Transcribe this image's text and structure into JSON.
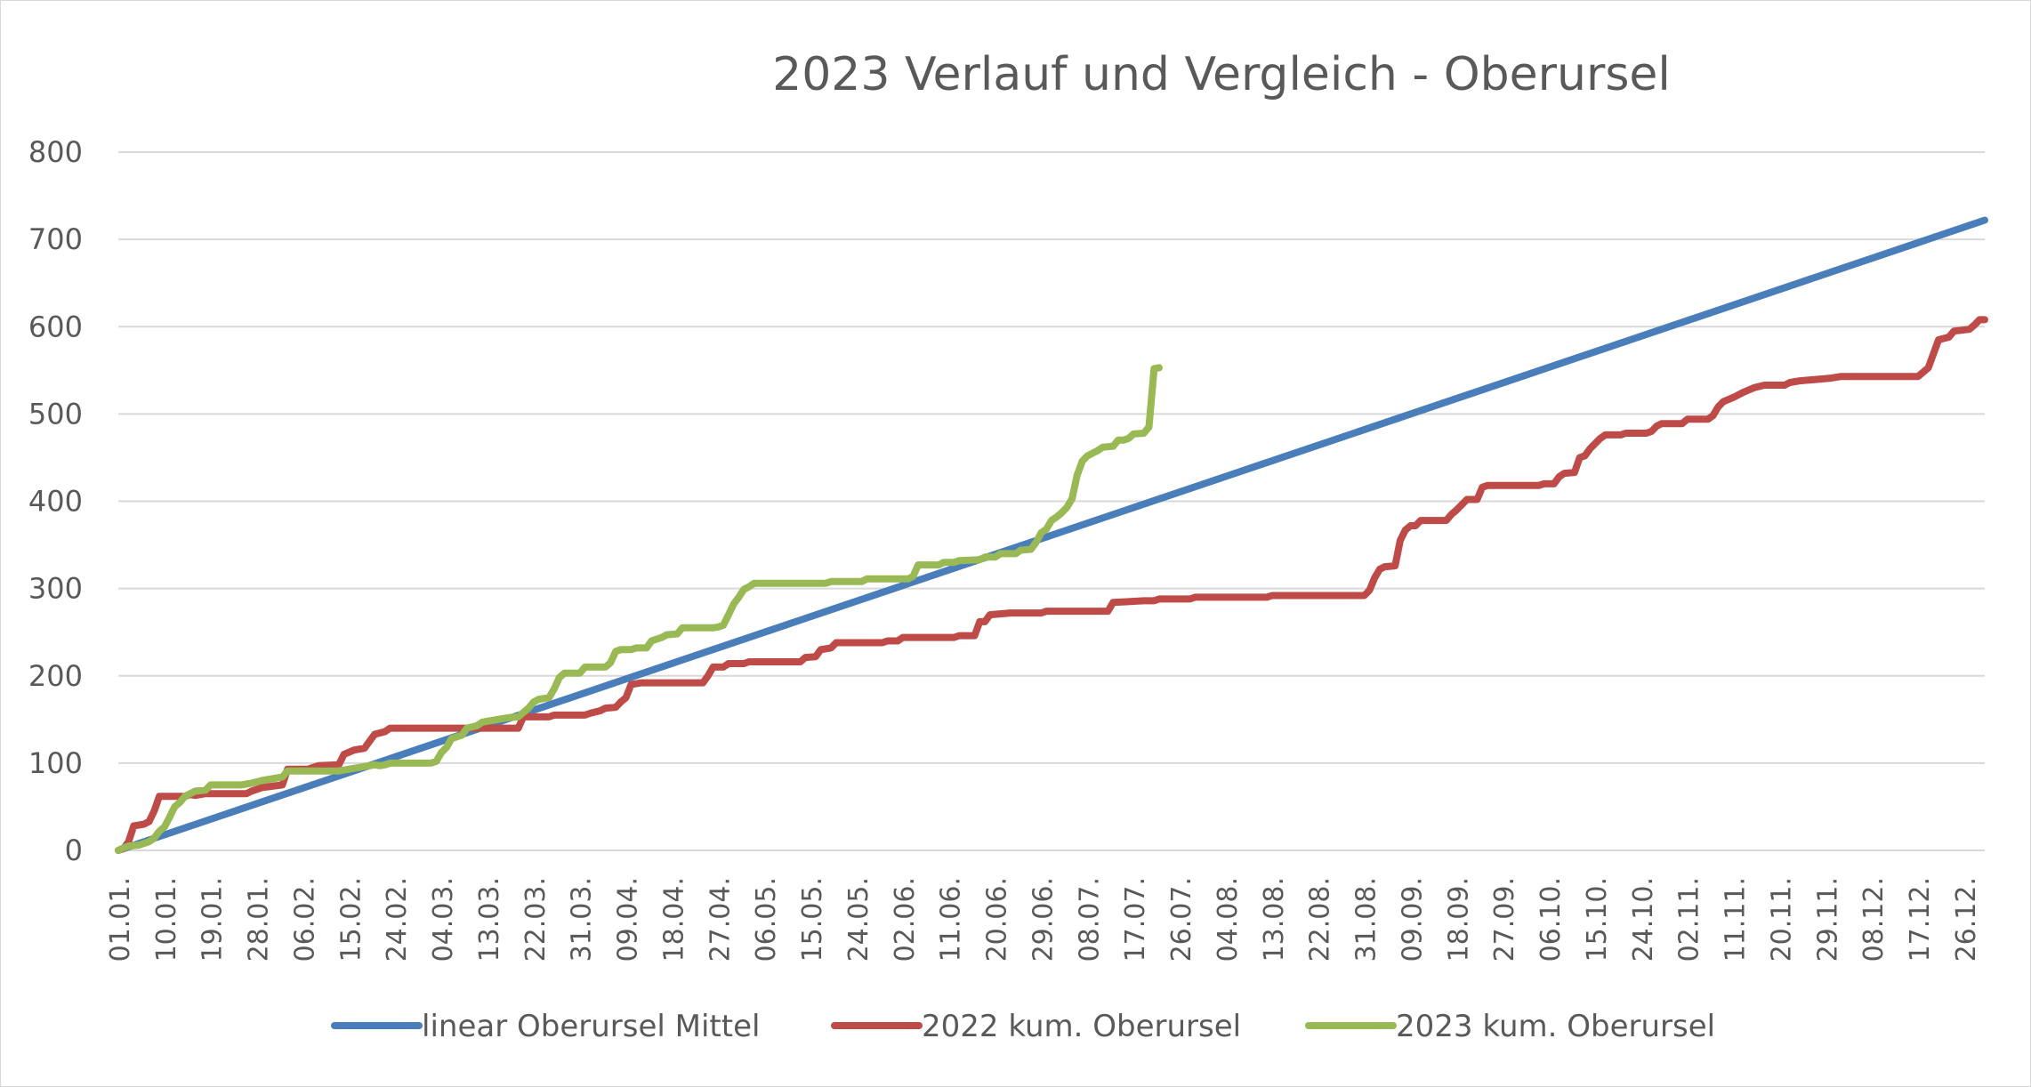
{
  "chart_data": {
    "type": "line",
    "title": "2023 Verlauf und Vergleich - Oberursel",
    "xlabel": "",
    "ylabel": "",
    "ylim": [
      0,
      800
    ],
    "yticks": [
      "0",
      "100",
      "200",
      "300",
      "400",
      "500",
      "600",
      "700",
      "800"
    ],
    "xticks": [
      "01.01.",
      "10.01.",
      "19.01.",
      "28.01.",
      "06.02.",
      "15.02.",
      "24.02.",
      "04.03.",
      "13.03.",
      "22.03.",
      "31.03.",
      "09.04.",
      "18.04.",
      "27.04.",
      "06.05.",
      "15.05.",
      "24.05.",
      "02.06.",
      "11.06.",
      "20.06.",
      "29.06.",
      "08.07.",
      "17.07.",
      "26.07.",
      "04.08.",
      "13.08.",
      "22.08.",
      "31.08.",
      "09.09.",
      "18.09.",
      "27.09.",
      "06.10.",
      "15.10.",
      "24.10.",
      "02.11.",
      "11.11.",
      "20.11.",
      "29.11.",
      "08.12.",
      "17.12.",
      "26.12."
    ],
    "x_unit": "day of year",
    "x_range": [
      1,
      365
    ],
    "grid": true,
    "legend_position": "bottom",
    "series": [
      {
        "name": "linear Oberursel Mittel",
        "color": "#4a7ebb",
        "points": [
          [
            1,
            0
          ],
          [
            365,
            722
          ]
        ]
      },
      {
        "name": "2022 kum. Oberursel",
        "color": "#be4b48",
        "points": [
          [
            1,
            0
          ],
          [
            2,
            2
          ],
          [
            3,
            10
          ],
          [
            4,
            28
          ],
          [
            6,
            30
          ],
          [
            7,
            33
          ],
          [
            8,
            45
          ],
          [
            9,
            62
          ],
          [
            14,
            62
          ],
          [
            15,
            64
          ],
          [
            16,
            63
          ],
          [
            18,
            65
          ],
          [
            26,
            65
          ],
          [
            27,
            68
          ],
          [
            29,
            72
          ],
          [
            33,
            75
          ],
          [
            34,
            93
          ],
          [
            38,
            93
          ],
          [
            40,
            97
          ],
          [
            44,
            98
          ],
          [
            45,
            110
          ],
          [
            47,
            115
          ],
          [
            49,
            117
          ],
          [
            50,
            125
          ],
          [
            51,
            133
          ],
          [
            53,
            136
          ],
          [
            54,
            140
          ],
          [
            79,
            140
          ],
          [
            80,
            153
          ],
          [
            85,
            153
          ],
          [
            86,
            155
          ],
          [
            92,
            155
          ],
          [
            93,
            157
          ],
          [
            95,
            160
          ],
          [
            96,
            163
          ],
          [
            98,
            164
          ],
          [
            99,
            170
          ],
          [
            100,
            175
          ],
          [
            101,
            190
          ],
          [
            103,
            192
          ],
          [
            115,
            192
          ],
          [
            116,
            200
          ],
          [
            117,
            210
          ],
          [
            119,
            210
          ],
          [
            120,
            214
          ],
          [
            123,
            214
          ],
          [
            124,
            216
          ],
          [
            134,
            216
          ],
          [
            135,
            221
          ],
          [
            137,
            222
          ],
          [
            138,
            230
          ],
          [
            140,
            232
          ],
          [
            141,
            238
          ],
          [
            150,
            238
          ],
          [
            151,
            240
          ],
          [
            153,
            240
          ],
          [
            154,
            244
          ],
          [
            164,
            244
          ],
          [
            165,
            246
          ],
          [
            168,
            246
          ],
          [
            169,
            262
          ],
          [
            170,
            262
          ],
          [
            171,
            270
          ],
          [
            175,
            272
          ],
          [
            181,
            272
          ],
          [
            182,
            274
          ],
          [
            194,
            274
          ],
          [
            195,
            284
          ],
          [
            201,
            286
          ],
          [
            203,
            286
          ],
          [
            204,
            288
          ],
          [
            210,
            288
          ],
          [
            211,
            290
          ],
          [
            225,
            290
          ],
          [
            226,
            292
          ],
          [
            244,
            292
          ],
          [
            245,
            298
          ],
          [
            246,
            312
          ],
          [
            247,
            322
          ],
          [
            248,
            325
          ],
          [
            250,
            326
          ],
          [
            251,
            355
          ],
          [
            252,
            367
          ],
          [
            253,
            372
          ],
          [
            254,
            372
          ],
          [
            255,
            378
          ],
          [
            260,
            378
          ],
          [
            261,
            385
          ],
          [
            262,
            390
          ],
          [
            263,
            396
          ],
          [
            264,
            402
          ],
          [
            266,
            402
          ],
          [
            267,
            416
          ],
          [
            268,
            418
          ],
          [
            278,
            418
          ],
          [
            279,
            420
          ],
          [
            281,
            420
          ],
          [
            282,
            428
          ],
          [
            283,
            432
          ],
          [
            285,
            433
          ],
          [
            286,
            450
          ],
          [
            287,
            452
          ],
          [
            288,
            460
          ],
          [
            289,
            466
          ],
          [
            290,
            472
          ],
          [
            291,
            476
          ],
          [
            294,
            476
          ],
          [
            295,
            478
          ],
          [
            299,
            478
          ],
          [
            300,
            480
          ],
          [
            301,
            486
          ],
          [
            302,
            489
          ],
          [
            306,
            489
          ],
          [
            307,
            494
          ],
          [
            311,
            494
          ],
          [
            312,
            498
          ],
          [
            313,
            508
          ],
          [
            314,
            514
          ],
          [
            316,
            519
          ],
          [
            318,
            525
          ],
          [
            320,
            530
          ],
          [
            322,
            533
          ],
          [
            326,
            533
          ],
          [
            327,
            536
          ],
          [
            329,
            538
          ],
          [
            331,
            539
          ],
          [
            333,
            540
          ],
          [
            335,
            541
          ],
          [
            337,
            543
          ],
          [
            352,
            543
          ],
          [
            354,
            553
          ],
          [
            356,
            585
          ],
          [
            358,
            588
          ],
          [
            359,
            595
          ],
          [
            362,
            597
          ],
          [
            363,
            602
          ],
          [
            364,
            608
          ],
          [
            365,
            608
          ]
        ]
      },
      {
        "name": "2023 kum. Oberursel",
        "color": "#98b954",
        "points": [
          [
            1,
            0
          ],
          [
            2,
            3
          ],
          [
            3,
            5
          ],
          [
            5,
            6
          ],
          [
            6,
            8
          ],
          [
            7,
            10
          ],
          [
            8,
            14
          ],
          [
            9,
            22
          ],
          [
            10,
            27
          ],
          [
            11,
            38
          ],
          [
            12,
            50
          ],
          [
            13,
            55
          ],
          [
            14,
            62
          ],
          [
            16,
            68
          ],
          [
            18,
            69
          ],
          [
            19,
            75
          ],
          [
            25,
            75
          ],
          [
            27,
            77
          ],
          [
            29,
            80
          ],
          [
            31,
            82
          ],
          [
            33,
            84
          ],
          [
            34,
            91
          ],
          [
            44,
            91
          ],
          [
            46,
            93
          ],
          [
            48,
            95
          ],
          [
            50,
            97
          ],
          [
            51,
            98
          ],
          [
            52,
            97
          ],
          [
            53,
            98
          ],
          [
            54,
            100
          ],
          [
            62,
            100
          ],
          [
            63,
            102
          ],
          [
            64,
            112
          ],
          [
            65,
            118
          ],
          [
            66,
            128
          ],
          [
            67,
            130
          ],
          [
            68,
            132
          ],
          [
            69,
            140
          ],
          [
            71,
            143
          ],
          [
            72,
            147
          ],
          [
            73,
            148
          ],
          [
            75,
            150
          ],
          [
            77,
            152
          ],
          [
            79,
            153
          ],
          [
            80,
            158
          ],
          [
            81,
            163
          ],
          [
            82,
            170
          ],
          [
            83,
            173
          ],
          [
            85,
            175
          ],
          [
            86,
            185
          ],
          [
            87,
            198
          ],
          [
            88,
            203
          ],
          [
            91,
            203
          ],
          [
            92,
            210
          ],
          [
            96,
            210
          ],
          [
            97,
            215
          ],
          [
            98,
            228
          ],
          [
            99,
            230
          ],
          [
            101,
            230
          ],
          [
            102,
            232
          ],
          [
            104,
            232
          ],
          [
            105,
            240
          ],
          [
            107,
            244
          ],
          [
            108,
            247
          ],
          [
            110,
            248
          ],
          [
            111,
            255
          ],
          [
            117,
            255
          ],
          [
            118,
            256
          ],
          [
            119,
            258
          ],
          [
            120,
            270
          ],
          [
            121,
            282
          ],
          [
            122,
            290
          ],
          [
            123,
            299
          ],
          [
            124,
            302
          ],
          [
            125,
            306
          ],
          [
            139,
            306
          ],
          [
            140,
            308
          ],
          [
            146,
            308
          ],
          [
            147,
            311
          ],
          [
            155,
            311
          ],
          [
            156,
            314
          ],
          [
            157,
            327
          ],
          [
            159,
            327
          ],
          [
            161,
            327
          ],
          [
            162,
            330
          ],
          [
            164,
            330
          ],
          [
            165,
            332
          ],
          [
            169,
            333
          ],
          [
            170,
            336
          ],
          [
            172,
            336
          ],
          [
            173,
            340
          ],
          [
            176,
            340
          ],
          [
            177,
            344
          ],
          [
            179,
            345
          ],
          [
            180,
            353
          ],
          [
            181,
            364
          ],
          [
            182,
            368
          ],
          [
            183,
            378
          ],
          [
            184,
            382
          ],
          [
            185,
            387
          ],
          [
            186,
            393
          ],
          [
            187,
            403
          ],
          [
            188,
            430
          ],
          [
            189,
            446
          ],
          [
            190,
            452
          ],
          [
            191,
            455
          ],
          [
            192,
            458
          ],
          [
            193,
            462
          ],
          [
            195,
            463
          ],
          [
            196,
            470
          ],
          [
            197,
            470
          ],
          [
            198,
            472
          ],
          [
            199,
            477
          ],
          [
            201,
            478
          ],
          [
            202,
            485
          ],
          [
            203,
            552
          ],
          [
            204,
            553
          ]
        ]
      }
    ]
  }
}
